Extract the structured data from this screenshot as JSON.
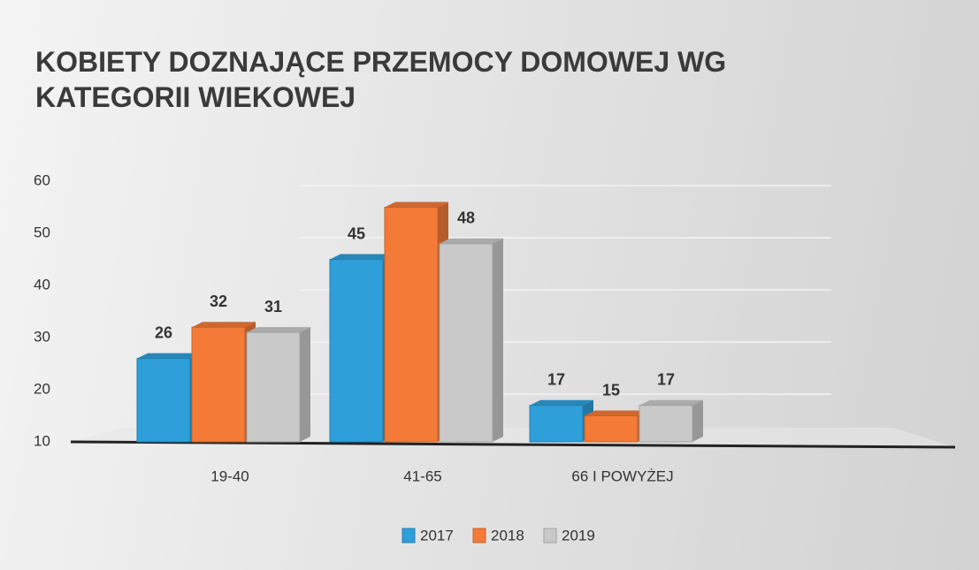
{
  "chart_data": {
    "type": "bar3d",
    "title": "KOBIETY DOZNAJĄCE  PRZEMOCY DOMOWEJ WG KATEGORII WIEKOWEJ",
    "categories": [
      "19-40",
      "41-65",
      "66 I POWYŻEJ"
    ],
    "series": [
      {
        "name": "2017",
        "color": "#2e9fd8",
        "values": [
          26,
          45,
          17
        ],
        "value_labels": [
          "26",
          "45",
          "17"
        ]
      },
      {
        "name": "2018",
        "color": "#f47a38",
        "values": [
          32,
          55,
          15
        ],
        "value_labels": [
          "32",
          null,
          "15"
        ]
      },
      {
        "name": "2019",
        "color": "#c9c9c9",
        "values": [
          31,
          48,
          17
        ],
        "value_labels": [
          "31",
          "48",
          "17"
        ]
      }
    ],
    "ylim": [
      10,
      60
    ],
    "yticks": [
      10,
      20,
      30,
      40,
      50,
      60
    ],
    "grid": true,
    "legend": "bottom"
  }
}
